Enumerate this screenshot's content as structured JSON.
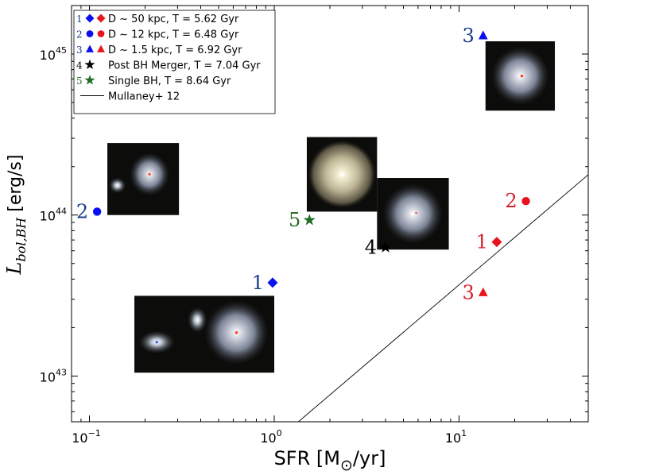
{
  "chart_data": {
    "type": "scatter",
    "title": "",
    "xlabel": "SFR [M",
    "xlabel_sub": "⊙",
    "xlabel_tail": "/yr]",
    "ylabel": "L",
    "ylabel_sub": "bol,BH",
    "ylabel_tail": " [erg/s]",
    "xscale": "log",
    "yscale": "log",
    "xlim": [
      0.08,
      50
    ],
    "ylim": [
      5.2e+42,
      2e+45
    ],
    "x_ticks": [
      {
        "value": 0.1,
        "base": "10",
        "exp": "−1"
      },
      {
        "value": 1,
        "base": "10",
        "exp": "0"
      },
      {
        "value": 10,
        "base": "10",
        "exp": "1"
      }
    ],
    "y_ticks": [
      {
        "value": 1e+43,
        "base": "10",
        "exp": "43"
      },
      {
        "value": 1e+44,
        "base": "10",
        "exp": "44"
      },
      {
        "value": 1e+45,
        "base": "10",
        "exp": "45"
      }
    ],
    "colors": {
      "blue": "#0a0ff0",
      "red": "#e8141c",
      "green": "#1e6e28",
      "black": "#000000",
      "label_blue": "#1a3c8c",
      "label_red": "#d8202a",
      "label_green": "#2a6e2a"
    },
    "series": [
      {
        "name": "D ~ 50 kpc, T = 5.62 Gyr",
        "marker": "diamond",
        "legend_num": "1",
        "points": [
          {
            "label": "1",
            "x": 0.98,
            "y": 3.8e+43,
            "color": "blue"
          },
          {
            "label": "1",
            "x": 16.0,
            "y": 6.8e+43,
            "color": "red"
          }
        ]
      },
      {
        "name": "D ~ 12 kpc, T = 6.48 Gyr",
        "marker": "circle",
        "legend_num": "2",
        "points": [
          {
            "label": "2",
            "x": 0.11,
            "y": 1.05e+44,
            "color": "blue"
          },
          {
            "label": "2",
            "x": 23.0,
            "y": 1.22e+44,
            "color": "red"
          }
        ]
      },
      {
        "name": "D ~ 1.5 kpc, T = 6.92 Gyr",
        "marker": "triangle",
        "legend_num": "3",
        "points": [
          {
            "label": "3",
            "x": 13.5,
            "y": 1.3e+45,
            "color": "blue"
          },
          {
            "label": "3",
            "x": 13.5,
            "y": 3.3e+43,
            "color": "red"
          }
        ]
      },
      {
        "name": "Post BH Merger, T = 7.04 Gyr",
        "marker": "star",
        "legend_num": "4",
        "points": [
          {
            "label": "4",
            "x": 4.0,
            "y": 6.3e+43,
            "color": "black"
          }
        ]
      },
      {
        "name": "Single BH, T = 8.64 Gyr",
        "marker": "star",
        "legend_num": "5",
        "points": [
          {
            "label": "5",
            "x": 1.55,
            "y": 9.3e+43,
            "color": "green"
          }
        ]
      }
    ],
    "lines": [
      {
        "name": "Mullaney+ 12",
        "x": [
          1.35,
          50
        ],
        "y": [
          5.2e+42,
          1.78e+44
        ],
        "color": "black"
      }
    ],
    "legend_placement": "top-left",
    "grid": false,
    "insets": [
      {
        "name": "stage-1-wide-pair",
        "x_min": 0.175,
        "x_max": 1.0,
        "y_min": 1.05e+43,
        "y_max": 3.15e+43,
        "kind": "pair"
      },
      {
        "name": "stage-2-close-pair",
        "x_min": 0.125,
        "x_max": 0.305,
        "y_min": 1e+44,
        "y_max": 2.8e+44,
        "kind": "close"
      },
      {
        "name": "stage-3-core",
        "x_min": 13.9,
        "x_max": 33.0,
        "y_min": 4.45e+44,
        "y_max": 1.2e+45,
        "kind": "single"
      },
      {
        "name": "stage-4-merged",
        "x_min": 3.6,
        "x_max": 8.8,
        "y_min": 6.1e+43,
        "y_max": 1.7e+44,
        "kind": "merged"
      },
      {
        "name": "stage-5-single",
        "x_min": 1.5,
        "x_max": 3.6,
        "y_min": 1.05e+44,
        "y_max": 3.05e+44,
        "kind": "bright"
      }
    ]
  }
}
